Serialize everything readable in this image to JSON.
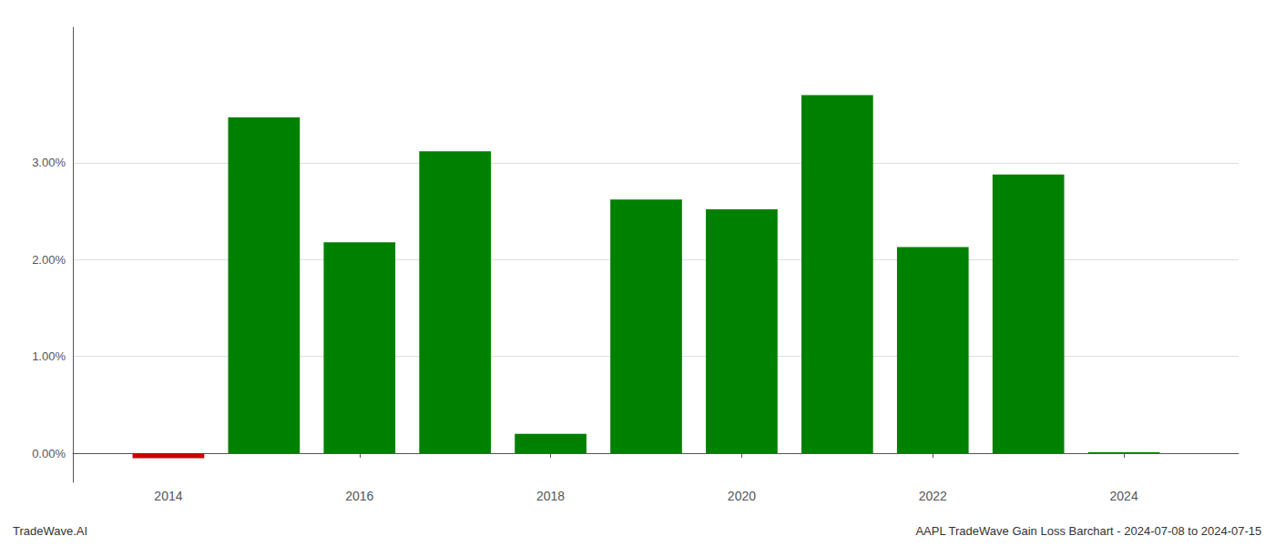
{
  "chart_data": {
    "type": "bar",
    "annotations": [
      "TradeWave.AI",
      "AAPL TradeWave Gain Loss Barchart - 2024-07-08 to 2024-07-15"
    ],
    "x": [
      2014,
      2015,
      2016,
      2017,
      2018,
      2019,
      2020,
      2021,
      2022,
      2023,
      2024
    ],
    "values": [
      -0.0005,
      0.0347,
      0.0218,
      0.0312,
      0.002,
      0.0262,
      0.0252,
      0.037,
      0.0213,
      0.0288,
      0.0001
    ],
    "colors": [
      "#cc0000",
      "#008000",
      "#008000",
      "#008000",
      "#008000",
      "#008000",
      "#008000",
      "#008000",
      "#008000",
      "#008000",
      "#008000"
    ],
    "xlim": [
      2013.0,
      2025.2
    ],
    "xticks": [
      2014,
      2016,
      2018,
      2020,
      2022,
      2024
    ],
    "ylim": [
      -0.003,
      0.044
    ],
    "yticks": [
      {
        "value": 0.0,
        "label": "0.00%"
      },
      {
        "value": 0.01,
        "label": "1.00%"
      },
      {
        "value": 0.02,
        "label": "2.00%"
      },
      {
        "value": 0.03,
        "label": "3.00%"
      }
    ],
    "grid": true
  }
}
